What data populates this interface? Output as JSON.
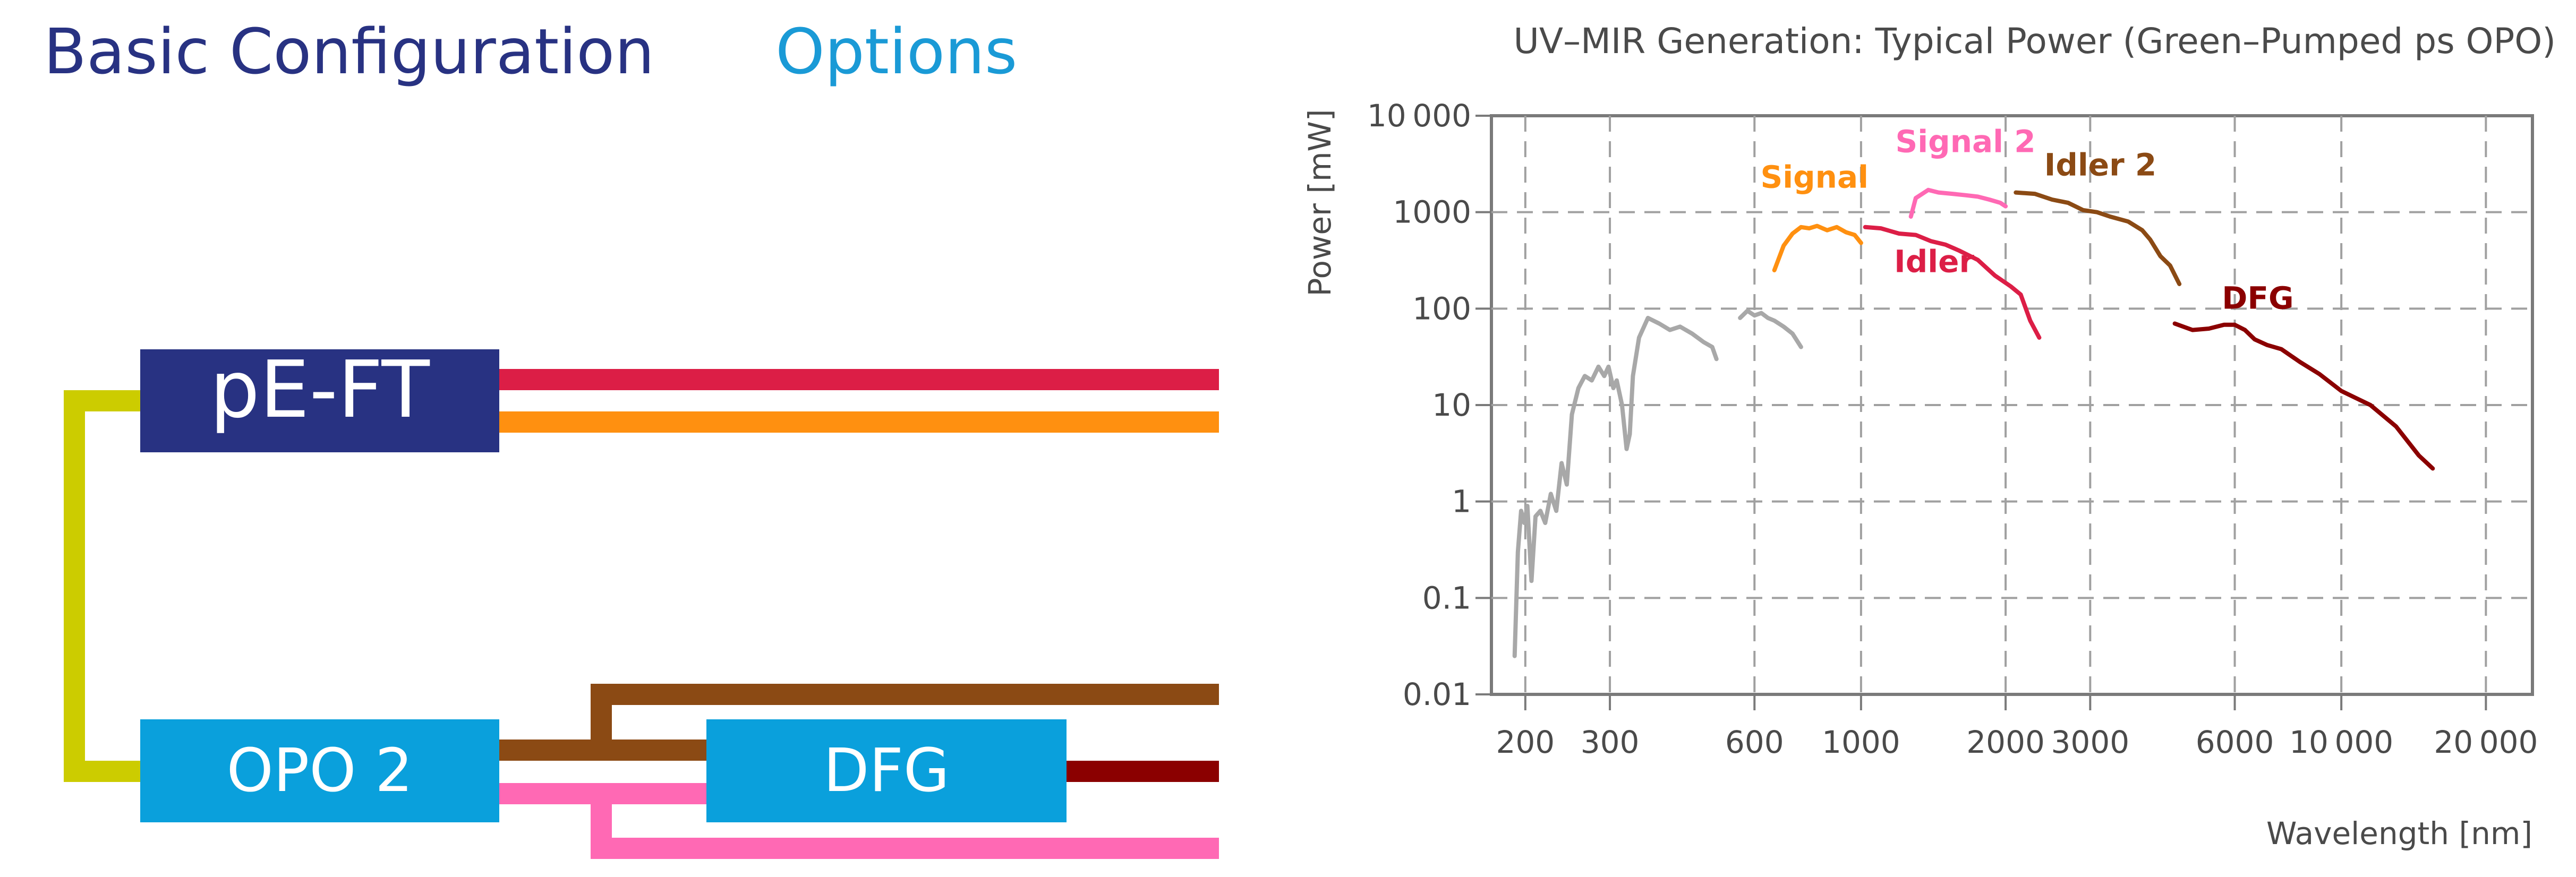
{
  "diagram": {
    "heading_basic": "Basic Configuration",
    "heading_options": "Options",
    "boxes": {
      "pe_ft": "pE-FT",
      "opo2": "OPO 2",
      "dfg": "DFG"
    },
    "colors": {
      "heading_basic": "#283282",
      "heading_options": "#1a9ad6",
      "pe_ft_box": "#283282",
      "opo_dfg_box": "#0aa0dc",
      "pump_green": "#cccc00",
      "signal": "#ff9010",
      "idler": "#dc1e46",
      "signal2": "#ff69b4",
      "idler2": "#8b4a14",
      "dfg_out": "#8b0000"
    }
  },
  "chart_data": {
    "type": "line",
    "title": "UV–MIR Generation: Typical Power (Green–Pumped ps OPO)",
    "xlabel": "Wavelength [nm]",
    "ylabel": "Power [mW]",
    "xscale": "log",
    "yscale": "log",
    "xlim": [
      170,
      25000
    ],
    "ylim": [
      0.01,
      10000
    ],
    "grid": true,
    "xticks": [
      200,
      300,
      600,
      1000,
      2000,
      3000,
      6000,
      10000,
      20000
    ],
    "xtick_labels": [
      "200",
      "300",
      "600",
      "1000",
      "2000",
      "3000",
      "6000",
      "10 000",
      "20 000"
    ],
    "yticks": [
      0.01,
      0.1,
      1,
      10,
      100,
      1000,
      10000
    ],
    "ytick_labels": [
      "0.01",
      "0.1",
      "1",
      "10",
      "100",
      "1000",
      "10 000"
    ],
    "series": [
      {
        "color": "#a8a8a8",
        "points": [
          [
            190,
            0.025
          ],
          [
            193,
            0.3
          ],
          [
            196,
            0.8
          ],
          [
            199,
            0.6
          ],
          [
            202,
            0.9
          ],
          [
            206,
            0.15
          ],
          [
            210,
            0.7
          ],
          [
            215,
            0.8
          ],
          [
            220,
            0.6
          ],
          [
            226,
            1.2
          ],
          [
            232,
            0.8
          ],
          [
            238,
            2.5
          ],
          [
            244,
            1.5
          ],
          [
            250,
            8
          ],
          [
            258,
            15
          ],
          [
            266,
            20
          ],
          [
            275,
            18
          ],
          [
            284,
            25
          ],
          [
            292,
            20
          ],
          [
            298,
            25
          ],
          [
            305,
            15
          ],
          [
            310,
            18
          ],
          [
            318,
            10
          ],
          [
            325,
            3.5
          ],
          [
            330,
            5
          ],
          [
            335,
            20
          ],
          [
            345,
            50
          ],
          [
            360,
            80
          ],
          [
            380,
            70
          ],
          [
            400,
            60
          ],
          [
            420,
            65
          ],
          [
            445,
            55
          ],
          [
            470,
            45
          ],
          [
            490,
            40
          ],
          [
            500,
            30
          ]
        ]
      },
      {
        "color": "#a8a8a8",
        "points": [
          [
            560,
            80
          ],
          [
            580,
            95
          ],
          [
            600,
            85
          ],
          [
            620,
            90
          ],
          [
            640,
            80
          ],
          [
            660,
            75
          ],
          [
            690,
            65
          ],
          [
            720,
            55
          ],
          [
            750,
            40
          ]
        ]
      },
      {
        "name": "Signal",
        "color": "#ff9010",
        "points": [
          [
            660,
            250
          ],
          [
            690,
            450
          ],
          [
            720,
            600
          ],
          [
            750,
            700
          ],
          [
            780,
            680
          ],
          [
            810,
            720
          ],
          [
            850,
            650
          ],
          [
            890,
            700
          ],
          [
            930,
            620
          ],
          [
            970,
            580
          ],
          [
            1000,
            480
          ]
        ]
      },
      {
        "name": "Idler",
        "color": "#dc1e46",
        "points": [
          [
            1020,
            700
          ],
          [
            1100,
            680
          ],
          [
            1200,
            600
          ],
          [
            1300,
            580
          ],
          [
            1400,
            500
          ],
          [
            1500,
            460
          ],
          [
            1600,
            400
          ],
          [
            1750,
            320
          ],
          [
            1900,
            220
          ],
          [
            2050,
            170
          ],
          [
            2150,
            140
          ],
          [
            2250,
            75
          ],
          [
            2350,
            50
          ]
        ]
      },
      {
        "name": "Signal 2",
        "color": "#ff69b4",
        "points": [
          [
            1270,
            900
          ],
          [
            1300,
            1400
          ],
          [
            1380,
            1700
          ],
          [
            1450,
            1600
          ],
          [
            1550,
            1550
          ],
          [
            1650,
            1500
          ],
          [
            1750,
            1450
          ],
          [
            1850,
            1350
          ],
          [
            1950,
            1250
          ],
          [
            2000,
            1150
          ]
        ]
      },
      {
        "name": "Idler 2",
        "color": "#8b4a14",
        "points": [
          [
            2100,
            1600
          ],
          [
            2300,
            1550
          ],
          [
            2500,
            1350
          ],
          [
            2700,
            1250
          ],
          [
            2900,
            1050
          ],
          [
            3100,
            1000
          ],
          [
            3300,
            900
          ],
          [
            3600,
            800
          ],
          [
            3850,
            650
          ],
          [
            4000,
            520
          ],
          [
            4200,
            350
          ],
          [
            4400,
            280
          ],
          [
            4600,
            180
          ]
        ]
      },
      {
        "name": "DFG",
        "color": "#8b0000",
        "points": [
          [
            4500,
            70
          ],
          [
            4900,
            60
          ],
          [
            5300,
            62
          ],
          [
            5700,
            68
          ],
          [
            6000,
            68
          ],
          [
            6300,
            60
          ],
          [
            6600,
            48
          ],
          [
            7000,
            42
          ],
          [
            7500,
            38
          ],
          [
            8200,
            28
          ],
          [
            9000,
            21
          ],
          [
            10000,
            14
          ],
          [
            11500,
            10
          ],
          [
            13000,
            6
          ],
          [
            14500,
            3
          ],
          [
            15500,
            2.2
          ]
        ]
      }
    ],
    "series_labels": [
      {
        "text": "Signal",
        "color": "#ff9010",
        "x": 800,
        "y": 1800
      },
      {
        "text": "Idler",
        "color": "#dc1e46",
        "x": 1420,
        "y": 240
      },
      {
        "text": "Signal 2",
        "color": "#ff69b4",
        "x": 1650,
        "y": 4200
      },
      {
        "text": "Idler 2",
        "color": "#8b4a14",
        "x": 3150,
        "y": 2400
      },
      {
        "text": "DFG",
        "color": "#8b0000",
        "x": 6700,
        "y": 100
      }
    ]
  }
}
